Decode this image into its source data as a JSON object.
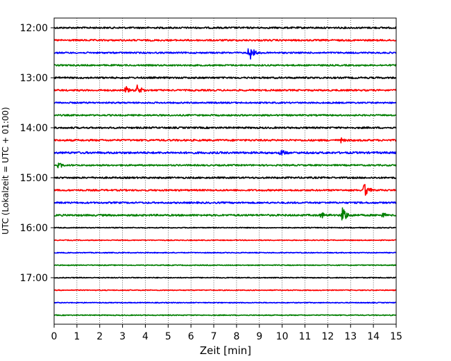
{
  "chart_data": {
    "type": "line",
    "title": "",
    "xlabel": "Zeit  [min]",
    "ylabel": "UTC (Lokalzeit = UTC + 01:00)",
    "xlim": [
      0,
      15
    ],
    "x_ticks": [
      "0",
      "1",
      "2",
      "3",
      "4",
      "5",
      "6",
      "7",
      "8",
      "9",
      "10",
      "11",
      "12",
      "13",
      "14",
      "15"
    ],
    "y_tick_labels": [
      "12:00",
      "13:00",
      "14:00",
      "15:00",
      "16:00",
      "17:00"
    ],
    "trace_interval_minutes": 15,
    "trace_start": "12:00",
    "trace_colors": [
      "#000000",
      "#ff0000",
      "#0000ff",
      "#007f00"
    ],
    "grid": "x-dotted",
    "series": [
      {
        "start": "12:00",
        "noise": 0.35,
        "events": []
      },
      {
        "start": "12:15",
        "noise": 0.35,
        "events": []
      },
      {
        "start": "12:30",
        "noise": 0.3,
        "events": [
          {
            "x": 8.55,
            "amp": 14
          }
        ]
      },
      {
        "start": "12:45",
        "noise": 0.3,
        "events": []
      },
      {
        "start": "13:00",
        "noise": 0.35,
        "events": []
      },
      {
        "start": "13:15",
        "noise": 0.35,
        "events": [
          {
            "x": 3.15,
            "amp": 6
          },
          {
            "x": 3.65,
            "amp": 10
          }
        ]
      },
      {
        "start": "13:30",
        "noise": 0.3,
        "events": []
      },
      {
        "start": "13:45",
        "noise": 0.3,
        "events": []
      },
      {
        "start": "14:00",
        "noise": 0.35,
        "events": []
      },
      {
        "start": "14:15",
        "noise": 0.4,
        "events": [
          {
            "x": 12.6,
            "amp": 3.5
          }
        ]
      },
      {
        "start": "14:30",
        "noise": 0.45,
        "events": [
          {
            "x": 9.9,
            "amp": 5
          }
        ]
      },
      {
        "start": "14:45",
        "noise": 0.3,
        "events": [
          {
            "x": 0.2,
            "amp": 4
          }
        ]
      },
      {
        "start": "15:00",
        "noise": 0.35,
        "events": []
      },
      {
        "start": "15:15",
        "noise": 0.35,
        "events": [
          {
            "x": 13.6,
            "amp": 11
          }
        ]
      },
      {
        "start": "15:30",
        "noise": 0.35,
        "events": []
      },
      {
        "start": "15:45",
        "noise": 0.4,
        "events": [
          {
            "x": 11.7,
            "amp": 5
          },
          {
            "x": 12.65,
            "amp": 12
          },
          {
            "x": 14.4,
            "amp": 4
          }
        ]
      },
      {
        "start": "16:00",
        "noise": 0.1,
        "events": []
      },
      {
        "start": "16:15",
        "noise": 0.1,
        "events": []
      },
      {
        "start": "16:30",
        "noise": 0.1,
        "events": []
      },
      {
        "start": "16:45",
        "noise": 0.1,
        "events": []
      },
      {
        "start": "17:00",
        "noise": 0.1,
        "events": []
      },
      {
        "start": "17:15",
        "noise": 0.1,
        "events": []
      },
      {
        "start": "17:30",
        "noise": 0.1,
        "events": []
      },
      {
        "start": "17:45",
        "noise": 0.1,
        "events": []
      }
    ]
  }
}
